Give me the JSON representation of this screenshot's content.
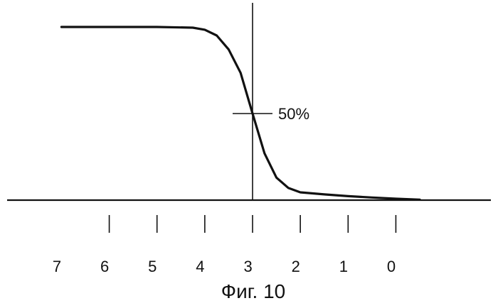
{
  "chart_data": {
    "type": "line",
    "x_ticks": [
      7,
      6,
      5,
      4,
      3,
      2,
      1,
      0
    ],
    "x_range": [
      7.5,
      -0.5
    ],
    "y_range": [
      0,
      100
    ],
    "x_axis_reversed": true,
    "series": [
      {
        "points": [
          {
            "x": 7.5,
            "y": 100
          },
          {
            "x": 6.5,
            "y": 100
          },
          {
            "x": 5.5,
            "y": 100
          },
          {
            "x": 4.75,
            "y": 99.6
          },
          {
            "x": 4.5,
            "y": 98.4
          },
          {
            "x": 4.25,
            "y": 95.1
          },
          {
            "x": 4.0,
            "y": 87.0
          },
          {
            "x": 3.75,
            "y": 73.5
          },
          {
            "x": 3.5,
            "y": 50.0
          },
          {
            "x": 3.25,
            "y": 27.0
          },
          {
            "x": 3.0,
            "y": 13.0
          },
          {
            "x": 2.75,
            "y": 7.0
          },
          {
            "x": 2.5,
            "y": 4.5
          },
          {
            "x": 2.0,
            "y": 3.3
          },
          {
            "x": 1.5,
            "y": 2.3
          },
          {
            "x": 1.0,
            "y": 1.5
          },
          {
            "x": 0.5,
            "y": 0.8
          },
          {
            "x": 0.0,
            "y": 0.3
          }
        ]
      }
    ],
    "vertical_reference_x": 3.5,
    "annotation": {
      "x": 3.5,
      "y": 50,
      "text": "50%"
    },
    "grid": false,
    "legend": "none"
  },
  "caption": "Фиг. 10"
}
